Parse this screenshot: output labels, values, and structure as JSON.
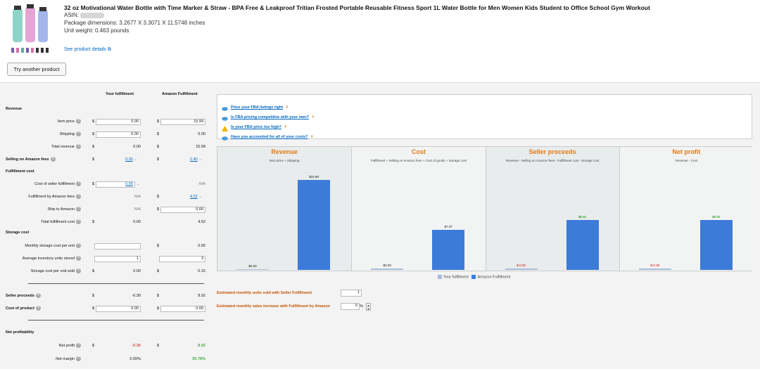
{
  "product": {
    "title": "32 oz Motivational Water Bottle with Time Marker & Straw - BPA Free & Leakproof Tritian Frosted Portable Reusable Fitness Sport 1L Water Bottle for Men Women Kids Student to Office School Gym Workout",
    "asin_label": "ASIN:",
    "dimensions": "Package dimensions: 3.2677 X 3.3071 X 11.5748 inches",
    "weight": "Unit weight: 0.463 pounds",
    "details_link": "See product details"
  },
  "try_button": "Try another product",
  "columns": {
    "your": "Your fulfillment",
    "amazon": "Amazon Fulfillment"
  },
  "sections": {
    "revenue": "Revenue",
    "fulfillment_cost": "Fulfillment cost",
    "storage_cost": "Storage cost",
    "net_profitability": "Net profitability"
  },
  "rows": {
    "item_price": {
      "label": "Item price",
      "your": "0.00",
      "amazon": "15.99"
    },
    "shipping": {
      "label": "Shipping",
      "your": "0.00",
      "amazon": "0.00"
    },
    "total_revenue": {
      "label": "Total revenue",
      "your": "0.00",
      "amazon": "15.99"
    },
    "selling_fees": {
      "label": "Selling on Amazon fees",
      "your": "0.30",
      "amazon": "2.40"
    },
    "seller_fulfillment": {
      "label": "Cost of seller fulfillment",
      "your": "0.00",
      "amazon": "N/A"
    },
    "fba_fees": {
      "label": "Fulfillment by Amazon fees",
      "your": "N/A",
      "amazon": "4.52"
    },
    "ship_to_amazon": {
      "label": "Ship to Amazon",
      "your": "N/A",
      "amazon": "0.00"
    },
    "total_fulfillment": {
      "label": "Total fulfillment cost",
      "your": "0.00",
      "amazon": "4.52"
    },
    "monthly_storage": {
      "label": "Monthly storage cost per unit",
      "your": "",
      "amazon": "0.05"
    },
    "avg_inventory": {
      "label": "Average inventory units stored",
      "your": "1",
      "amazon": "3"
    },
    "storage_per_unit": {
      "label": "Storage cost per unit sold",
      "your": "0.00",
      "amazon": "0.15"
    },
    "seller_proceeds": {
      "label": "Seller proceeds",
      "your": "-0.30",
      "amazon": "8.92"
    },
    "cost_of_product": {
      "label": "Cost of product",
      "your": "0.00",
      "amazon": "0.00"
    },
    "net_profit": {
      "label": "Net profit",
      "your": "-0.30",
      "amazon": "8.92"
    },
    "net_margin": {
      "label": "Net margin",
      "your": "0.00%",
      "amazon": "55.78%"
    }
  },
  "currency": "$",
  "tips": [
    "Price your FBA listings right",
    "Is FBA pricing competitive with your own?",
    "Is your FBA price too high?",
    "Have you accounted for all of your costs?"
  ],
  "estimates": {
    "units_label": "Estimated monthly units sold with Seller Fulfillment",
    "units_value": "1",
    "increase_label": "Estimated monthly sales increase with Fulfillment by Amazon",
    "increase_value": "0",
    "increase_unit": "%"
  },
  "colors": {
    "accent": "#e47911",
    "amazon_bar": "#3d7bd9",
    "your_bar": "#a9bcd9",
    "link": "#0066c0",
    "negative": "#cc0000",
    "positive": "#008a00"
  },
  "chart_data": [
    {
      "type": "bar",
      "title": "Revenue",
      "subtitle": "Item price + Shipping",
      "categories": [
        "Your fulfillment",
        "Amazon Fulfillment"
      ],
      "values": [
        0.0,
        15.99
      ],
      "labels": [
        "$0.00",
        "$15.99"
      ]
    },
    {
      "type": "bar",
      "title": "Cost",
      "subtitle": "Fulfillment + Selling on Amazon fees + Cost of goods + Storage cost",
      "categories": [
        "Your fulfillment",
        "Amazon Fulfillment"
      ],
      "values": [
        0.3,
        7.07
      ],
      "labels": [
        "$0.30",
        "$7.07"
      ]
    },
    {
      "type": "bar",
      "title": "Seller proceeds",
      "subtitle": "Revenue - Selling on Amazon fees - Fulfillment cost - Storage cost",
      "categories": [
        "Your fulfillment",
        "Amazon Fulfillment"
      ],
      "values": [
        -0.3,
        8.92
      ],
      "labels": [
        "$-0.30",
        "$8.92"
      ]
    },
    {
      "type": "bar",
      "title": "Net profit",
      "subtitle": "Revenue - Cost",
      "categories": [
        "Your fulfillment",
        "Amazon Fulfillment"
      ],
      "values": [
        -0.3,
        8.92
      ],
      "labels": [
        "$-0.30",
        "$8.92"
      ]
    }
  ],
  "legend": {
    "your": "Your fulfillment",
    "amazon": "Amazon Fulfillment"
  }
}
